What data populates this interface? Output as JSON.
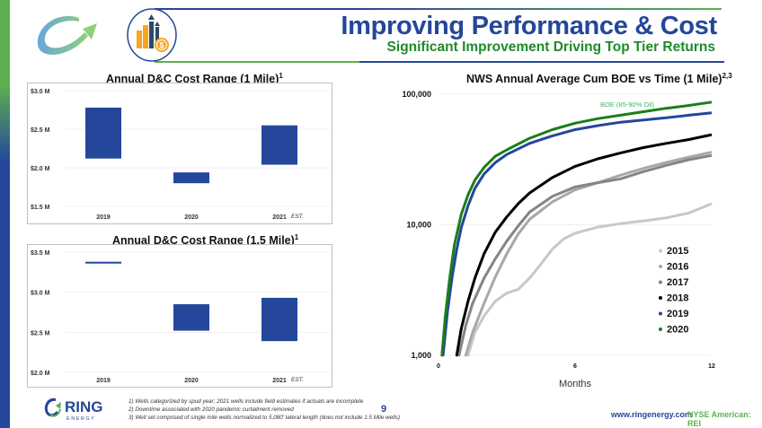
{
  "header": {
    "title": "Improving Performance & Cost",
    "subtitle": "Significant Improvement Driving Top Tier Returns"
  },
  "icons": {
    "logo": "ring-swoosh-logo-icon",
    "performance": "bar-chart-dollar-icon"
  },
  "colors": {
    "brand_blue": "#24479b",
    "brand_green": "#5db04f",
    "bar_fill": "#24479b"
  },
  "chart_data": [
    {
      "type": "bar",
      "subtype": "floating-range",
      "title": "Annual D&C Cost Range (1 Mile)",
      "title_sup": "1",
      "categories": [
        "2019",
        "2020",
        "2021"
      ],
      "category_suffix": [
        "",
        "",
        "EST."
      ],
      "series": [
        {
          "name": "low",
          "values": [
            2.12,
            1.8,
            2.04
          ]
        },
        {
          "name": "high",
          "values": [
            2.78,
            1.94,
            2.55
          ]
        }
      ],
      "yticks": [
        "$3.0 M",
        "$2.5 M",
        "$2.0 M",
        "$1.5 M"
      ],
      "ytick_values": [
        3.0,
        2.5,
        2.0,
        1.5
      ],
      "ylim": [
        1.5,
        3.0
      ],
      "ylabel": "",
      "xlabel": "",
      "grid": true,
      "units": "$M"
    },
    {
      "type": "bar",
      "subtype": "floating-range",
      "title": "Annual D&C Cost Range (1.5 Mile)",
      "title_sup": "1",
      "categories": [
        "2019",
        "2020",
        "2021"
      ],
      "category_suffix": [
        "",
        "",
        "EST."
      ],
      "series": [
        {
          "name": "low",
          "values": [
            3.36,
            2.52,
            2.39
          ]
        },
        {
          "name": "high",
          "values": [
            3.38,
            2.85,
            2.93
          ]
        }
      ],
      "yticks": [
        "$3.5 M",
        "$3.0 M",
        "$2.5 M",
        "$2.0 M"
      ],
      "ytick_values": [
        3.5,
        3.0,
        2.5,
        2.0
      ],
      "ylim": [
        2.0,
        3.5
      ],
      "ylabel": "",
      "xlabel": "",
      "grid": true,
      "units": "$M"
    },
    {
      "type": "line",
      "title": "NWS Annual Average Cum BOE vs Time (1 Mile)",
      "title_sup": "2,3",
      "xlabel": "Months",
      "ylabel": "",
      "annotation": "BOE (85-90% Oil)",
      "yscale": "log",
      "ylim": [
        1000,
        100000
      ],
      "xlim": [
        0,
        12
      ],
      "xticks": [
        "0",
        "6",
        "12"
      ],
      "xtick_values": [
        0,
        6,
        12
      ],
      "yticks": [
        "100,000",
        "10,000",
        "1,000"
      ],
      "ytick_values": [
        100000,
        10000,
        1000
      ],
      "legend_position": "right",
      "grid": true,
      "series": [
        {
          "name": "2015",
          "color": "#c8c8c8",
          "x": [
            1.3,
            1.6,
            2.0,
            2.5,
            3.0,
            3.5,
            4.0,
            4.5,
            5.0,
            5.5,
            6.0,
            7.0,
            8.0,
            9.0,
            10.0,
            11.0,
            12.0
          ],
          "y": [
            1000,
            1500,
            2000,
            2600,
            3000,
            3200,
            3900,
            5000,
            6500,
            7800,
            8600,
            9600,
            10200,
            10700,
            11300,
            12300,
            14500
          ]
        },
        {
          "name": "2016",
          "color": "#a8a8a8",
          "x": [
            1.2,
            1.5,
            2.0,
            2.5,
            3.0,
            3.5,
            4.0,
            5.0,
            6.0,
            7.0,
            8.0,
            9.0,
            10.0,
            11.0,
            12.0
          ],
          "y": [
            1000,
            1500,
            2500,
            4000,
            6000,
            8500,
            11000,
            15000,
            18500,
            21000,
            24000,
            27000,
            30000,
            33000,
            36000
          ]
        },
        {
          "name": "2017",
          "color": "#858585",
          "x": [
            0.9,
            1.2,
            1.5,
            2.0,
            2.5,
            3.0,
            3.5,
            4.0,
            5.0,
            6.0,
            7.0,
            8.0,
            9.0,
            10.0,
            11.0,
            12.0
          ],
          "y": [
            1000,
            1700,
            2500,
            3900,
            5500,
            7500,
            9800,
            12500,
            16500,
            19500,
            21000,
            22500,
            25500,
            28500,
            31500,
            34000
          ]
        },
        {
          "name": "2018",
          "color": "#000000",
          "x": [
            0.8,
            1.0,
            1.3,
            1.6,
            2.0,
            2.5,
            3.0,
            3.5,
            4.0,
            5.0,
            6.0,
            7.0,
            8.0,
            9.0,
            10.0,
            11.0,
            12.0
          ],
          "y": [
            1000,
            1600,
            2600,
            3900,
            6000,
            8800,
            11500,
            14500,
            17500,
            23000,
            28000,
            32000,
            35500,
            39000,
            42000,
            45000,
            49000
          ]
        },
        {
          "name": "2019",
          "color": "#24479b",
          "x": [
            0.2,
            0.4,
            0.6,
            0.8,
            1.0,
            1.3,
            1.6,
            2.0,
            2.5,
            3.0,
            4.0,
            5.0,
            6.0,
            7.0,
            8.0,
            9.0,
            10.0,
            11.0,
            12.0
          ],
          "y": [
            1000,
            2200,
            4000,
            6500,
            9500,
            14000,
            19000,
            24500,
            30000,
            34500,
            42000,
            48000,
            53500,
            57500,
            61000,
            63500,
            66000,
            69000,
            72000
          ]
        },
        {
          "name": "2020",
          "color": "#1a7f1a",
          "x": [
            0.15,
            0.3,
            0.5,
            0.7,
            1.0,
            1.3,
            1.6,
            2.0,
            2.5,
            3.0,
            4.0,
            5.0,
            6.0,
            7.0,
            8.0,
            9.0,
            10.0,
            11.0,
            12.0
          ],
          "y": [
            1000,
            2000,
            4000,
            7000,
            12000,
            17000,
            22000,
            27500,
            33500,
            37500,
            46000,
            53500,
            60000,
            65000,
            69000,
            73500,
            78000,
            82000,
            87000
          ]
        }
      ]
    }
  ],
  "footer": {
    "company_name": "RING",
    "company_sub": "E N E R G Y",
    "notes": [
      "1)   Wells categorized by spud year; 2021 wells include field estimates if actuals are incomplete",
      "2)   Downtime associated with 2020 pandemic curtailment removed",
      "3)   Well set comprised of single mile wells normalized to 5,080' lateral length (does not include 1.5 Mile wells)"
    ],
    "page_number": "9",
    "website": "www.ringenergy.com",
    "ticker": "NYSE American: REI"
  }
}
